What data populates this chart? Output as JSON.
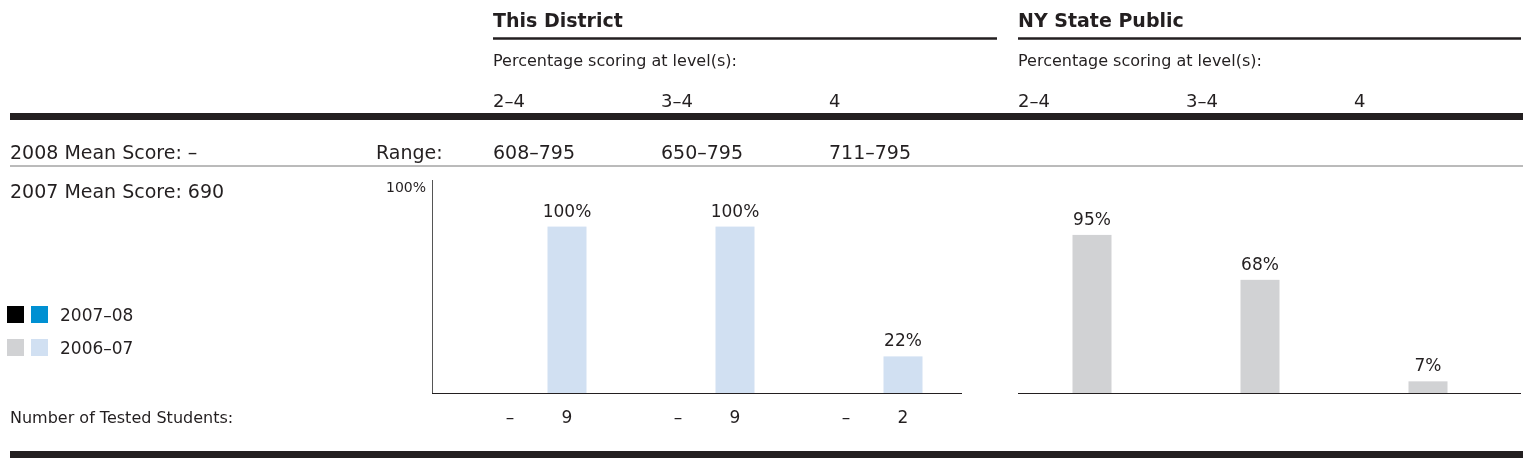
{
  "chart_data": [
    {
      "type": "bar",
      "title": "This District",
      "subtitle": "Percentage scoring at level(s):",
      "categories": [
        "2–4",
        "3–4",
        "4"
      ],
      "ylim": [
        0,
        128
      ],
      "tick_labels": "x",
      "legend": "left",
      "series": [
        {
          "name": "2007–08",
          "color": "#0090d2",
          "values": [
            null,
            null,
            null
          ]
        },
        {
          "name": "2006–07",
          "color": "#d1e0f2",
          "values": [
            100,
            100,
            22
          ],
          "value_labels": [
            "100%",
            "100%",
            "22%"
          ]
        }
      ],
      "annotations": [
        "2008 Mean Score: –",
        "2007 Mean Score: 690",
        "Range:",
        "608–795",
        "650–795",
        "711–795",
        "Number of Tested Students:",
        "–",
        "9",
        "–",
        "9",
        "–",
        "2",
        "100%"
      ]
    },
    {
      "type": "bar",
      "title": "NY State Public",
      "subtitle": "Percentage scoring at level(s):",
      "categories": [
        "2–4",
        "3–4",
        "4"
      ],
      "tick_labels": "x",
      "series": [
        {
          "color": "#000000",
          "values": [
            null,
            null,
            null
          ]
        },
        {
          "color": "#d1d2d4",
          "values": [
            95,
            68,
            7
          ],
          "value_labels": [
            "95%",
            "68%",
            "7%"
          ]
        }
      ]
    }
  ]
}
